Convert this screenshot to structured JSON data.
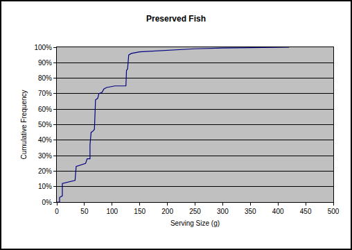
{
  "chart_data": {
    "type": "line",
    "title": "Preserved Fish",
    "x_label": "Serving Size (g)",
    "y_label": "Cumulative Frequency",
    "x": [
      0,
      5,
      5,
      10,
      10,
      20,
      33,
      35,
      45,
      52,
      55,
      60,
      60,
      62,
      66,
      68,
      70,
      74,
      76,
      82,
      85,
      90,
      105,
      125,
      126,
      128,
      130,
      135,
      150,
      200,
      250,
      300,
      420
    ],
    "values": [
      0,
      0,
      3,
      4,
      12,
      13,
      14,
      23,
      24,
      25,
      28,
      28,
      37,
      45,
      46,
      47,
      66,
      67,
      70,
      71,
      73,
      74,
      75,
      75,
      85,
      86,
      95,
      96,
      97,
      98,
      99,
      99.5,
      100
    ],
    "color": "#000080",
    "xlim": [
      0,
      500
    ],
    "xticks": [
      0,
      50,
      100,
      150,
      200,
      250,
      300,
      350,
      400,
      450,
      500
    ],
    "ylim": [
      0,
      100
    ],
    "yticks": [
      {
        "value": 0,
        "label": "0%"
      },
      {
        "value": 10,
        "label": "10%"
      },
      {
        "value": 20,
        "label": "20%"
      },
      {
        "value": 30,
        "label": "30%"
      },
      {
        "value": 40,
        "label": "40%"
      },
      {
        "value": 50,
        "label": "50%"
      },
      {
        "value": 60,
        "label": "60%"
      },
      {
        "value": 70,
        "label": "70%"
      },
      {
        "value": 80,
        "label": "80%"
      },
      {
        "value": 90,
        "label": "90%"
      },
      {
        "value": 100,
        "label": "100%"
      }
    ],
    "grid": true
  }
}
